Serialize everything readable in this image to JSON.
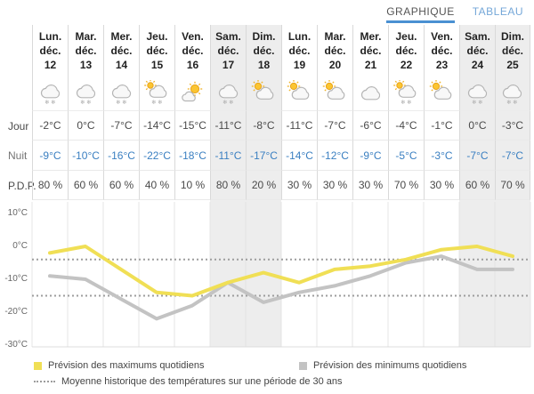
{
  "tabs": [
    {
      "label": "GRAPHIQUE",
      "active": true
    },
    {
      "label": "TABLEAU",
      "active": false
    }
  ],
  "row_labels": {
    "day": "Jour",
    "night": "Nuit",
    "pop": "P.D.P."
  },
  "columns": [
    {
      "weekday": "Lun.",
      "month": "déc.",
      "day": "12",
      "icon": "snow-cloud",
      "day_temp": "-2°C",
      "night_temp": "-9°C",
      "pop": "80 %",
      "weekend": false
    },
    {
      "weekday": "Mar.",
      "month": "déc.",
      "day": "13",
      "icon": "snow-cloud",
      "day_temp": "0°C",
      "night_temp": "-10°C",
      "pop": "60 %",
      "weekend": false
    },
    {
      "weekday": "Mer.",
      "month": "déc.",
      "day": "14",
      "icon": "snow-cloud",
      "day_temp": "-7°C",
      "night_temp": "-16°C",
      "pop": "60 %",
      "weekend": false
    },
    {
      "weekday": "Jeu.",
      "month": "déc.",
      "day": "15",
      "icon": "sun-snow-cloud",
      "day_temp": "-14°C",
      "night_temp": "-22°C",
      "pop": "40 %",
      "weekend": false
    },
    {
      "weekday": "Ven.",
      "month": "déc.",
      "day": "16",
      "icon": "mostly-sunny",
      "day_temp": "-15°C",
      "night_temp": "-18°C",
      "pop": "10 %",
      "weekend": false
    },
    {
      "weekday": "Sam.",
      "month": "déc.",
      "day": "17",
      "icon": "snow-cloud",
      "day_temp": "-11°C",
      "night_temp": "-11°C",
      "pop": "80 %",
      "weekend": true
    },
    {
      "weekday": "Dim.",
      "month": "déc.",
      "day": "18",
      "icon": "sun-cloud",
      "day_temp": "-8°C",
      "night_temp": "-17°C",
      "pop": "20 %",
      "weekend": true
    },
    {
      "weekday": "Lun.",
      "month": "déc.",
      "day": "19",
      "icon": "sun-cloud",
      "day_temp": "-11°C",
      "night_temp": "-14°C",
      "pop": "30 %",
      "weekend": false
    },
    {
      "weekday": "Mar.",
      "month": "déc.",
      "day": "20",
      "icon": "sun-cloud",
      "day_temp": "-7°C",
      "night_temp": "-12°C",
      "pop": "30 %",
      "weekend": false
    },
    {
      "weekday": "Mer.",
      "month": "déc.",
      "day": "21",
      "icon": "cloud",
      "day_temp": "-6°C",
      "night_temp": "-9°C",
      "pop": "30 %",
      "weekend": false
    },
    {
      "weekday": "Jeu.",
      "month": "déc.",
      "day": "22",
      "icon": "sun-snow-cloud",
      "day_temp": "-4°C",
      "night_temp": "-5°C",
      "pop": "70 %",
      "weekend": false
    },
    {
      "weekday": "Ven.",
      "month": "déc.",
      "day": "23",
      "icon": "sun-cloud",
      "day_temp": "-1°C",
      "night_temp": "-3°C",
      "pop": "30 %",
      "weekend": false
    },
    {
      "weekday": "Sam.",
      "month": "déc.",
      "day": "24",
      "icon": "snow-cloud",
      "day_temp": "0°C",
      "night_temp": "-7°C",
      "pop": "60 %",
      "weekend": true
    },
    {
      "weekday": "Dim.",
      "month": "déc.",
      "day": "25",
      "icon": "snow-cloud",
      "day_temp": "-3°C",
      "night_temp": "-7°C",
      "pop": "70 %",
      "weekend": true
    }
  ],
  "chart_data": {
    "type": "line",
    "categories": [
      "Lun. déc. 12",
      "Mar. déc. 13",
      "Mer. déc. 14",
      "Jeu. déc. 15",
      "Ven. déc. 16",
      "Sam. déc. 17",
      "Dim. déc. 18",
      "Lun. déc. 19",
      "Mar. déc. 20",
      "Mer. déc. 21",
      "Jeu. déc. 22",
      "Ven. déc. 23",
      "Sam. déc. 24",
      "Dim. déc. 25"
    ],
    "series": [
      {
        "name": "Prévision des maximums quotidiens",
        "color": "#f0df55",
        "values": [
          -2,
          0,
          -7,
          -14,
          -15,
          -11,
          -8,
          -11,
          -7,
          -6,
          -4,
          -1,
          0,
          -3
        ]
      },
      {
        "name": "Prévision des minimums quotidiens",
        "color": "#c3c3c3",
        "values": [
          -9,
          -10,
          -16,
          -22,
          -18,
          -11,
          -17,
          -14,
          -12,
          -9,
          -5,
          -3,
          -7,
          -7
        ]
      }
    ],
    "historical_average": {
      "label": "Moyenne historique des températures sur une période de 30 ans",
      "max": -4,
      "min": -15,
      "style": "dotted",
      "color": "#9d9d9d"
    },
    "ylabel_ticks": [
      "10°C",
      "0°C",
      "-10°C",
      "-20°C",
      "-30°C"
    ],
    "ytick_values": [
      10,
      0,
      -10,
      -20,
      -30
    ],
    "ylim": [
      -32,
      13
    ],
    "grid": "vertical",
    "legend_position": "bottom"
  },
  "legend": {
    "items": [
      {
        "swatch": "yellow-square",
        "label": "Prévision des maximums quotidiens"
      },
      {
        "swatch": "gray-square",
        "label": "Prévision des minimums quotidiens"
      },
      {
        "swatch": "dotted-line",
        "label": "Moyenne historique des températures sur une période de 30 ans"
      }
    ]
  },
  "colors": {
    "accent_blue": "#4a90d2",
    "tab_inactive": "#74a7d8",
    "night_temp": "#3a7fc1",
    "max_line": "#f0df55",
    "min_line": "#c3c3c3",
    "historical_dotted": "#9d9d9d",
    "weekend_bg": "#ededed",
    "gridline": "#e4e4e4"
  }
}
